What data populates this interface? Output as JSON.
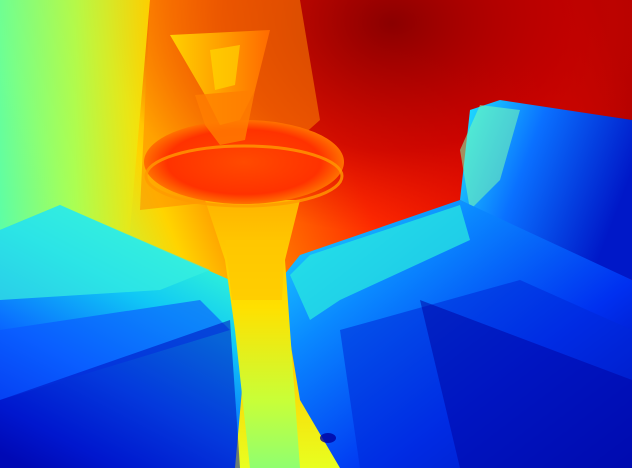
{
  "image": {
    "colormap": "jet",
    "palette": {
      "dark_red": "#8b0000",
      "red": "#e8160b",
      "orange": "#ff7a00",
      "yellow": "#f2f20f",
      "green": "#7cff7a",
      "cyan": "#19d7f0",
      "blue": "#0a5cff",
      "dark_blue": "#0000a8"
    }
  }
}
